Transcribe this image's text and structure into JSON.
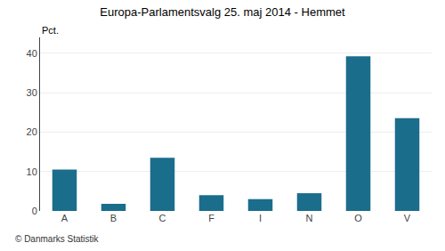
{
  "chart_data": {
    "type": "bar",
    "title": "Europa-Parlamentsvalg 25. maj 2014 - Hemmet",
    "categories": [
      "A",
      "B",
      "C",
      "F",
      "I",
      "N",
      "O",
      "V"
    ],
    "values": [
      10.5,
      1.8,
      13.5,
      4.0,
      3.0,
      4.5,
      39.2,
      23.5
    ],
    "color": "#1b6d8c",
    "ylabel": "Pct.",
    "ylim": [
      0,
      44
    ],
    "yticks": [
      0,
      10,
      20,
      30,
      40
    ],
    "grid": true,
    "annotations": [
      "© Danmarks Statistik"
    ]
  }
}
